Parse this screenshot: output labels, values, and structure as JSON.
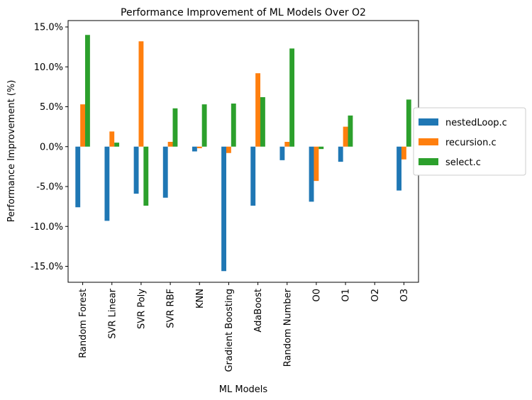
{
  "chart_data": {
    "type": "bar",
    "title": "Performance Improvement of ML Models Over O2",
    "xlabel": "ML Models",
    "ylabel": "Performance Improvement (%)",
    "ylim": [
      -17.0,
      15.8
    ],
    "yticks": [
      -15,
      -10,
      -5,
      0,
      5,
      10,
      15
    ],
    "ytick_format": "{v}%",
    "grid": false,
    "legend_position": "right",
    "categories": [
      "Random Forest",
      "SVR Linear",
      "SVR Poly",
      "SVR RBF",
      "KNN",
      "Gradient Boosting",
      "AdaBoost",
      "Random Number",
      "O0",
      "O1",
      "O2",
      "O3"
    ],
    "series": [
      {
        "name": "nestedLoop.c",
        "color": "#1f77b4",
        "values": [
          -7.6,
          -9.3,
          -5.9,
          -6.4,
          -0.6,
          -15.6,
          -7.4,
          -1.7,
          -6.9,
          -1.9,
          0.0,
          -5.5
        ]
      },
      {
        "name": "recursion.c",
        "color": "#ff7f0e",
        "values": [
          5.3,
          1.9,
          13.2,
          0.6,
          -0.2,
          -0.8,
          9.2,
          0.6,
          -4.3,
          2.5,
          0.0,
          -1.6
        ]
      },
      {
        "name": "select.c",
        "color": "#2ca02c",
        "values": [
          14.0,
          0.5,
          -7.4,
          4.8,
          5.3,
          5.4,
          6.2,
          12.3,
          -0.3,
          3.9,
          0.0,
          5.9
        ]
      }
    ]
  }
}
